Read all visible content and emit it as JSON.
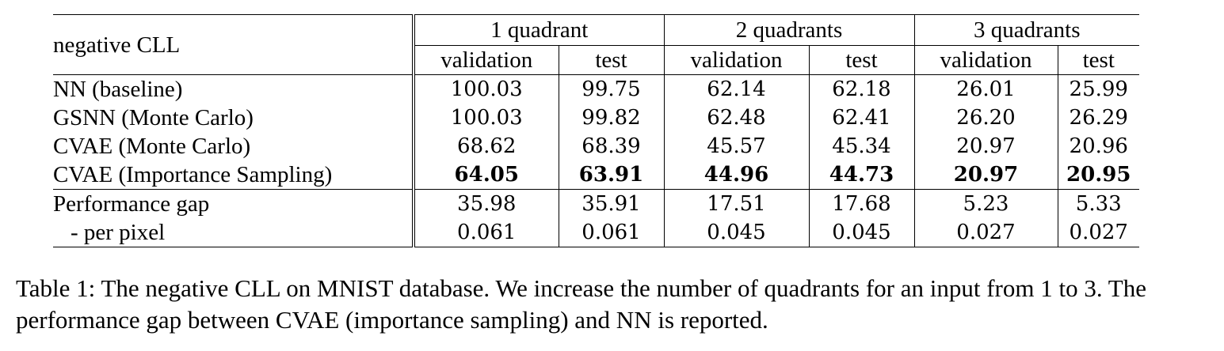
{
  "table": {
    "corner_label": "negative CLL",
    "groups": [
      "1 quadrant",
      "2 quadrants",
      "3 quadrants"
    ],
    "subheaders": [
      "validation",
      "test",
      "validation",
      "test",
      "validation",
      "test"
    ],
    "rows": [
      {
        "label": "NN (baseline)",
        "values": [
          "100.03",
          "99.75",
          "62.14",
          "62.18",
          "26.01",
          "25.99"
        ]
      },
      {
        "label": "GSNN (Monte Carlo)",
        "values": [
          "100.03",
          "99.82",
          "62.48",
          "62.41",
          "26.20",
          "26.29"
        ]
      },
      {
        "label": "CVAE (Monte Carlo)",
        "values": [
          "68.62",
          "68.39",
          "45.57",
          "45.34",
          "20.97",
          "20.96"
        ]
      },
      {
        "label": "CVAE (Importance Sampling)",
        "values": [
          "64.05",
          "63.91",
          "44.96",
          "44.73",
          "20.97",
          "20.95"
        ],
        "bold": true
      }
    ],
    "gap_rows": [
      {
        "label": "Performance gap",
        "values": [
          "35.98",
          "35.91",
          "17.51",
          "17.68",
          "5.23",
          "5.33"
        ]
      },
      {
        "label": "- per pixel",
        "values": [
          "0.061",
          "0.061",
          "0.045",
          "0.045",
          "0.027",
          "0.027"
        ]
      }
    ]
  },
  "caption": "Table 1: The negative CLL on MNIST database. We increase the number of quadrants for an input from 1 to 3. The performance gap between CVAE (importance sampling) and NN is reported."
}
